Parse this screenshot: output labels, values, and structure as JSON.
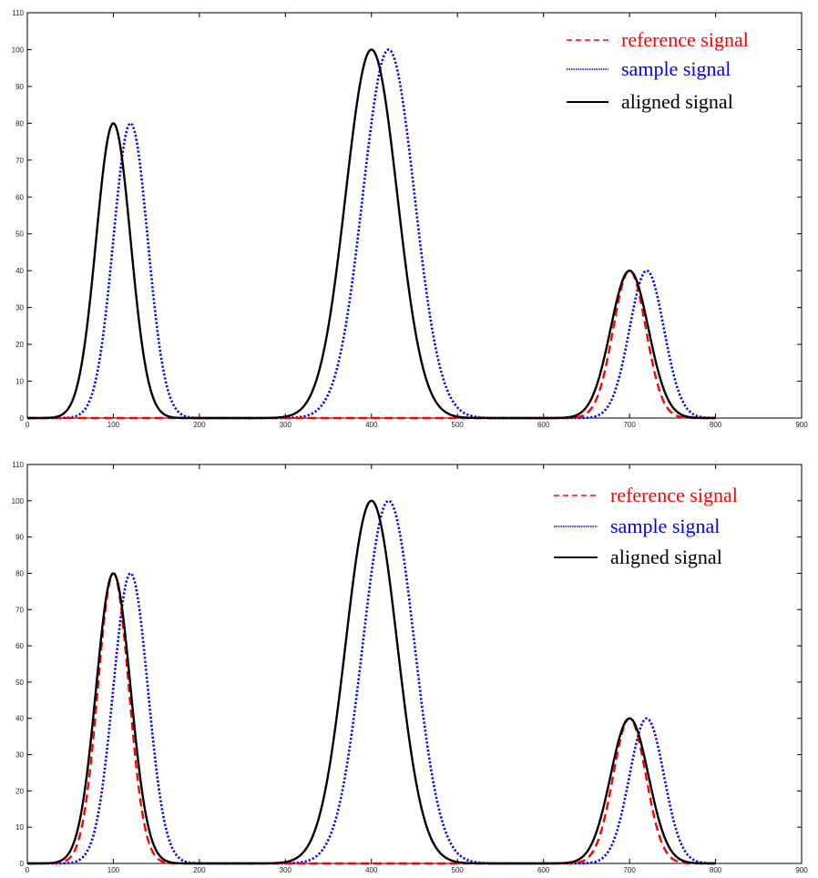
{
  "chart_data": [
    {
      "type": "line",
      "xlim": [
        0,
        900
      ],
      "ylim": [
        0,
        110
      ],
      "xticks": [
        0,
        100,
        200,
        300,
        400,
        500,
        600,
        700,
        800,
        900
      ],
      "yticks": [
        0,
        10,
        20,
        30,
        40,
        50,
        60,
        70,
        80,
        90,
        100,
        110
      ],
      "grid": false,
      "legend_position": "top-right",
      "x_range": [
        0,
        800
      ],
      "series": [
        {
          "name": "reference signal",
          "color": "#ff0000",
          "style": "dashed",
          "peaks": [
            {
              "center": 700,
              "height": 40,
              "sigma": 19
            }
          ]
        },
        {
          "name": "sample signal",
          "color": "#0000ff",
          "style": "dotted",
          "peaks": [
            {
              "center": 120,
              "height": 80,
              "sigma": 20
            },
            {
              "center": 420,
              "height": 100,
              "sigma": 30
            },
            {
              "center": 720,
              "height": 40,
              "sigma": 20
            }
          ]
        },
        {
          "name": "aligned signal",
          "color": "#000000",
          "style": "solid",
          "peaks": [
            {
              "center": 100,
              "height": 80,
              "sigma": 20
            },
            {
              "center": 400,
              "height": 100,
              "sigma": 30
            },
            {
              "center": 700,
              "height": 40,
              "sigma": 22
            }
          ]
        }
      ]
    },
    {
      "type": "line",
      "xlim": [
        0,
        900
      ],
      "ylim": [
        0,
        110
      ],
      "xticks": [
        0,
        100,
        200,
        300,
        400,
        500,
        600,
        700,
        800,
        900
      ],
      "yticks": [
        0,
        10,
        20,
        30,
        40,
        50,
        60,
        70,
        80,
        90,
        100,
        110
      ],
      "grid": false,
      "legend_position": "top-right",
      "x_range": [
        0,
        800
      ],
      "series": [
        {
          "name": "reference signal",
          "color": "#ff0000",
          "style": "dashed",
          "peaks": [
            {
              "center": 100,
              "height": 80,
              "sigma": 18
            },
            {
              "center": 700,
              "height": 40,
              "sigma": 19
            }
          ]
        },
        {
          "name": "sample signal",
          "color": "#0000ff",
          "style": "dotted",
          "peaks": [
            {
              "center": 120,
              "height": 80,
              "sigma": 20
            },
            {
              "center": 420,
              "height": 100,
              "sigma": 30
            },
            {
              "center": 720,
              "height": 40,
              "sigma": 20
            }
          ]
        },
        {
          "name": "aligned signal",
          "color": "#000000",
          "style": "solid",
          "peaks": [
            {
              "center": 100,
              "height": 80,
              "sigma": 20
            },
            {
              "center": 400,
              "height": 100,
              "sigma": 30
            },
            {
              "center": 700,
              "height": 40,
              "sigma": 22
            }
          ]
        }
      ]
    }
  ]
}
